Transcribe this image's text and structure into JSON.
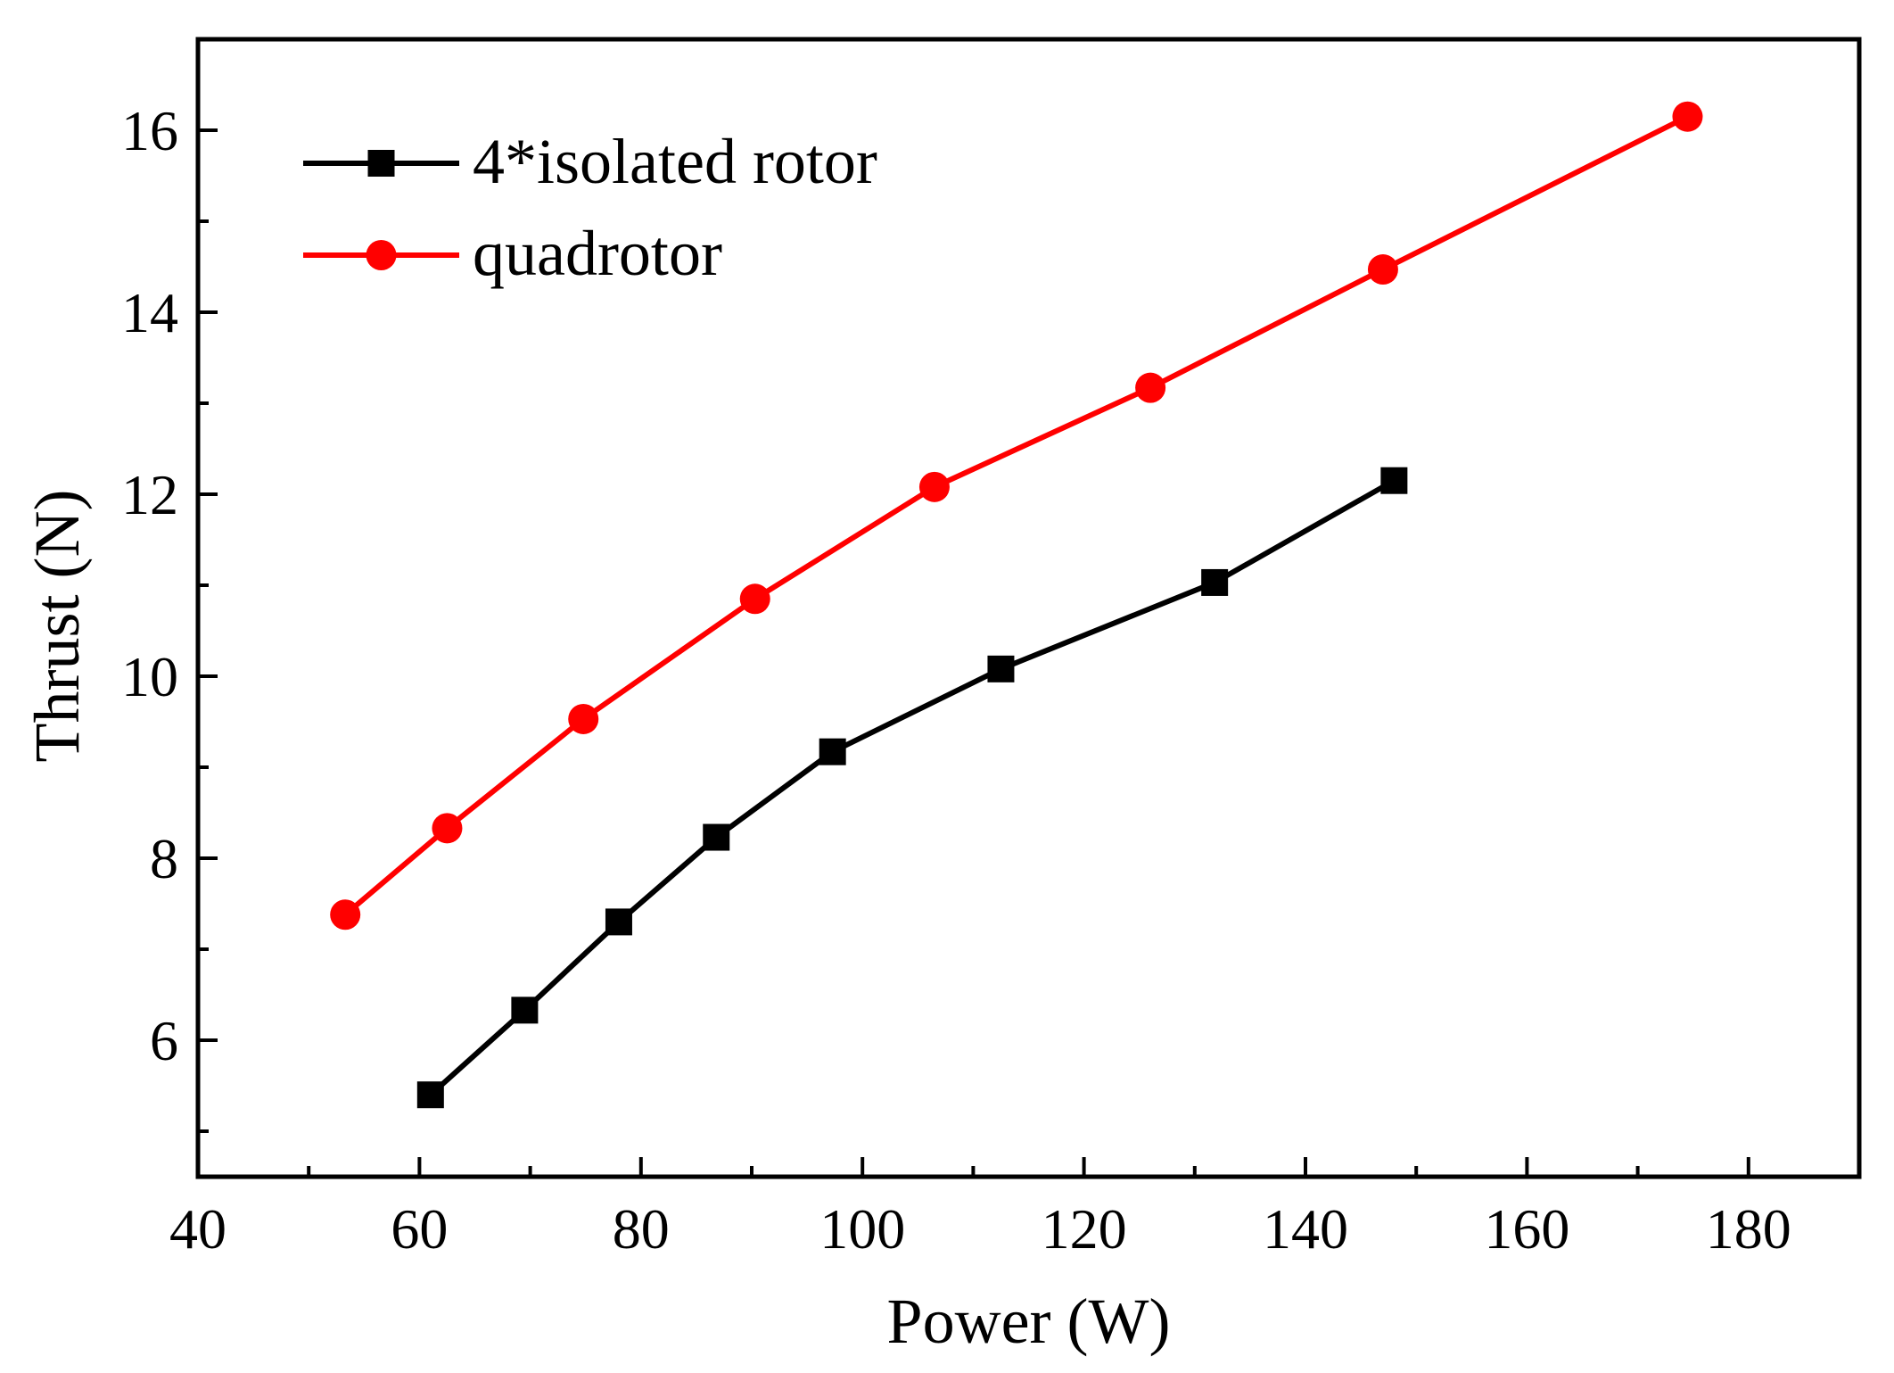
{
  "chart_data": {
    "type": "line",
    "title": "",
    "xlabel": "Power (W)",
    "ylabel": "Thrust (N)",
    "xlim": [
      40,
      190
    ],
    "ylim": [
      4.5,
      17
    ],
    "x_ticks": [
      "40",
      "60",
      "80",
      "100",
      "120",
      "140",
      "160",
      "180"
    ],
    "x_tick_values": [
      40,
      60,
      80,
      100,
      120,
      140,
      160,
      180
    ],
    "y_ticks": [
      "6",
      "8",
      "10",
      "12",
      "14",
      "16"
    ],
    "y_tick_values": [
      6,
      8,
      10,
      12,
      14,
      16
    ],
    "legend_position": "top-left",
    "grid": false,
    "series": [
      {
        "name": "4*isolated rotor",
        "color": "#000000",
        "marker": "square",
        "x": [
          61,
          69.5,
          78,
          86.8,
          97.3,
          112.5,
          131.8,
          148
        ],
        "y": [
          5.4,
          6.33,
          7.3,
          8.23,
          9.17,
          10.08,
          11.03,
          12.15
        ]
      },
      {
        "name": "quadrotor",
        "color": "#ff0000",
        "marker": "circle",
        "x": [
          53.3,
          62.5,
          74.8,
          90.3,
          106.5,
          126,
          147,
          174.5
        ],
        "y": [
          7.38,
          8.33,
          9.53,
          10.85,
          12.08,
          13.17,
          14.47,
          16.15
        ]
      }
    ]
  }
}
